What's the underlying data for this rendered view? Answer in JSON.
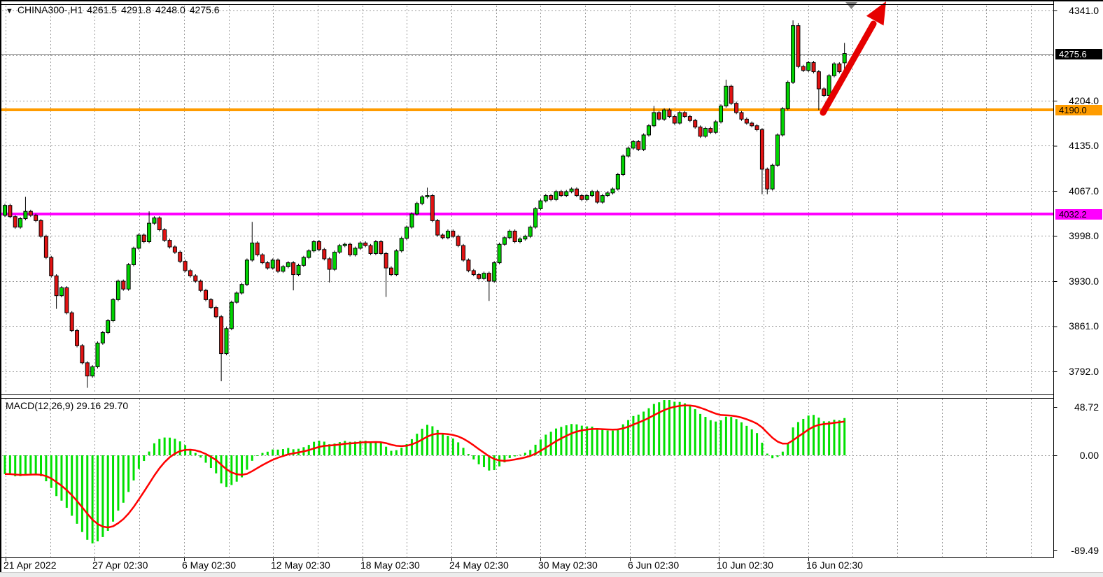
{
  "header": {
    "symbol_period": "CHINA300-,H1",
    "open": "4261.5",
    "high": "4291.8",
    "low": "4248.0",
    "close": "4275.6"
  },
  "icons": {
    "dropdown_triangle": "▼"
  },
  "price_axis": {
    "labels": [
      {
        "text": "4341.0",
        "value": 4341.0
      },
      {
        "text": "4204.0",
        "value": 4204.0
      },
      {
        "text": "4135.0",
        "value": 4135.5
      },
      {
        "text": "4067.0",
        "value": 4067.0
      },
      {
        "text": "3998.0",
        "value": 3998.5
      },
      {
        "text": "3930.0",
        "value": 3930.0
      },
      {
        "text": "3861.0",
        "value": 3861.5
      },
      {
        "text": "3792.0",
        "value": 3793.0
      }
    ],
    "current_price_tag": {
      "text": "4275.6",
      "value": 4275.6,
      "bg": "#000000",
      "fg": "#ffffff"
    }
  },
  "hlines": [
    {
      "tag_text": "4190.0",
      "value": 4190.0,
      "color": "#ff9c00",
      "text_color": "#000000"
    },
    {
      "tag_text": "4032.2",
      "value": 4032.2,
      "color": "#ff00ff",
      "text_color": "#000000"
    }
  ],
  "time_axis": {
    "labels": [
      "21 Apr 2022",
      "27 Apr 02:30",
      "6 May 02:30",
      "12 May 02:30",
      "18 May 02:30",
      "24 May 02:30",
      "30 May 02:30",
      "6 Jun 02:30",
      "10 Jun 02:30",
      "16 Jun 02:30"
    ]
  },
  "macd_panel": {
    "label": "MACD(12,26,9) 29.16 29.70",
    "axis": [
      {
        "text": "48.72",
        "value": 48.72
      },
      {
        "text": "0.00",
        "value": 0.0
      },
      {
        "text": "-89.49",
        "value": -89.49
      }
    ]
  },
  "chart_data": {
    "type": "candlestick",
    "symbol": "CHINA300-",
    "timeframe": "H1",
    "title": "CHINA300-,H1 4261.5 4291.8 4248.0 4275.6",
    "x_range": [
      "21 Apr 2022",
      "17 Jun 2022"
    ],
    "price_axis_range": [
      3792.0,
      4341.0
    ],
    "grid": {
      "on": true,
      "price_step": 68.5,
      "top_price": 4341.0
    },
    "first_open": 4030,
    "closes": [
      4045,
      4028,
      4012,
      4025,
      4036,
      4030,
      4022,
      3998,
      3966,
      3938,
      3908,
      3920,
      3882,
      3855,
      3832,
      3806,
      3786,
      3800,
      3836,
      3852,
      3870,
      3902,
      3930,
      3918,
      3955,
      3980,
      4000,
      3990,
      4018,
      4026,
      4008,
      3992,
      3982,
      3974,
      3960,
      3946,
      3938,
      3930,
      3916,
      3902,
      3890,
      3876,
      3820,
      3858,
      3898,
      3912,
      3925,
      3962,
      3988,
      3970,
      3958,
      3950,
      3962,
      3945,
      3952,
      3958,
      3940,
      3954,
      3966,
      3976,
      3990,
      3978,
      3964,
      3948,
      3974,
      3984,
      3986,
      3970,
      3980,
      3988,
      3984,
      3972,
      3990,
      3972,
      3950,
      3940,
      3976,
      3995,
      4012,
      4032,
      4048,
      4058,
      4060,
      4022,
      4000,
      3996,
      4006,
      3998,
      3984,
      3962,
      3946,
      3940,
      3934,
      3942,
      3930,
      3958,
      3986,
      3996,
      4006,
      3990,
      3994,
      3998,
      4012,
      4040,
      4052,
      4060,
      4054,
      4066,
      4060,
      4066,
      4070,
      4060,
      4054,
      4060,
      4066,
      4050,
      4060,
      4064,
      4070,
      4092,
      4120,
      4132,
      4142,
      4130,
      4152,
      4166,
      4186,
      4176,
      4190,
      4180,
      4170,
      4186,
      4180,
      4174,
      4164,
      4150,
      4162,
      4156,
      4172,
      4196,
      4226,
      4200,
      4186,
      4176,
      4170,
      4166,
      4160,
      4100,
      4070,
      4106,
      4152,
      4192,
      4232,
      4318,
      4256,
      4250,
      4262,
      4248,
      4222,
      4212,
      4242,
      4260,
      4248,
      4275.6
    ],
    "wick_overrides": {
      "4": {
        "high": 4058
      },
      "10": {
        "low": 3888
      },
      "16": {
        "low": 3768
      },
      "28": {
        "high": 4036
      },
      "42": {
        "low": 3778
      },
      "48": {
        "high": 4020
      },
      "56": {
        "low": 3916
      },
      "63": {
        "low": 3928
      },
      "74": {
        "low": 3906
      },
      "82": {
        "high": 4072
      },
      "94": {
        "low": 3900
      },
      "126": {
        "high": 4196
      },
      "140": {
        "high": 4236
      },
      "147": {
        "low": 4062
      },
      "148": {
        "low": 4062
      },
      "153": {
        "high": 4326
      },
      "154": {
        "high": 4322
      },
      "158": {
        "low": 4190
      }
    },
    "last_bar": {
      "open": 4261.5,
      "high": 4291.8,
      "low": 4248.0,
      "close": 4275.6
    },
    "indicator": {
      "name": "MACD",
      "fast": 12,
      "slow": 26,
      "signal": 9,
      "last_main": 29.16,
      "last_signal": 29.7,
      "axis_max": 48.72,
      "axis_min": -89.49
    },
    "annotations": [
      {
        "type": "trend-arrow-up",
        "color": "#e60000",
        "anchor_price": 4190.0
      },
      {
        "type": "time-marker-triangle",
        "color": "#808080"
      }
    ]
  },
  "colors": {
    "bull": "#00d400",
    "bear": "#e21313",
    "candle_outline": "#000000",
    "wick": "#000000",
    "macd_hist": "#00e000",
    "macd_signal": "#ff0000",
    "grid": "#9b9b9b",
    "border": "#000000",
    "current_price_line": "#777777",
    "arrow": "#e60000",
    "marker": "#808080"
  }
}
